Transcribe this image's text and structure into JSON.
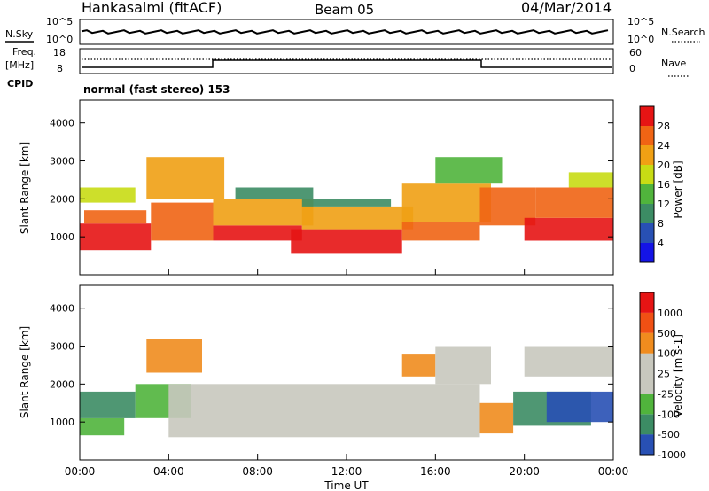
{
  "header": {
    "station": "Hankasalmi (fitACF)",
    "beam": "Beam 05",
    "date": "04/Mar/2014"
  },
  "noise_panel": {
    "left_label": "N.Sky",
    "right_label": "N.Search",
    "ticks_left": [
      "10^5",
      "10^0"
    ],
    "ticks_right": [
      "10^5",
      "10^0"
    ]
  },
  "freq_panel": {
    "left_label_1": "Freq.",
    "left_label_2": "[MHz]",
    "ticks_left": [
      "18",
      "8"
    ],
    "ticks_right": [
      "60",
      "0"
    ],
    "right_label": "Nave",
    "cpid_label": "CPID",
    "mode_text": "normal (fast stereo) 153"
  },
  "x_axis": {
    "label": "Time UT",
    "ticks": [
      "00:00",
      "04:00",
      "08:00",
      "12:00",
      "16:00",
      "20:00",
      "00:00"
    ]
  },
  "colors": {
    "power_scale": [
      "#1414e6",
      "#2850b4",
      "#3c8c64",
      "#50b43c",
      "#c8dc14",
      "#f0a014",
      "#f06414",
      "#e61414"
    ],
    "velocity_scale": [
      "#e61414",
      "#f05014",
      "#f08c1e",
      "#c8c8be",
      "#c8c8be",
      "#50b43c",
      "#3c8c64",
      "#2850b4"
    ]
  },
  "chart_data": [
    {
      "type": "heatmap",
      "title": "Power",
      "xlabel": "Time UT",
      "ylabel": "Slant Range [km]",
      "xlim": [
        0,
        24
      ],
      "ylim": [
        0,
        4600
      ],
      "yticks": [
        "1000",
        "2000",
        "3000",
        "4000"
      ],
      "colorbar_label": "Power [dB]",
      "colorbar_ticks": [
        "4",
        "8",
        "12",
        "16",
        "20",
        "24",
        "28"
      ],
      "regions": [
        {
          "t0": 0.0,
          "t1": 3.2,
          "r0": 650,
          "r1": 1350,
          "level": 7
        },
        {
          "t0": 0.2,
          "t1": 3.0,
          "r0": 1350,
          "r1": 1700,
          "level": 6
        },
        {
          "t0": 0.0,
          "t1": 2.5,
          "r0": 1900,
          "r1": 2300,
          "level": 4
        },
        {
          "t0": 3.2,
          "t1": 6.0,
          "r0": 900,
          "r1": 1900,
          "level": 6
        },
        {
          "t0": 3.0,
          "t1": 6.5,
          "r0": 2000,
          "r1": 3100,
          "level": 5
        },
        {
          "t0": 6.0,
          "t1": 10.0,
          "r0": 900,
          "r1": 1300,
          "level": 7
        },
        {
          "t0": 6.0,
          "t1": 10.5,
          "r0": 1300,
          "r1": 2000,
          "level": 5
        },
        {
          "t0": 7.0,
          "t1": 10.5,
          "r0": 2000,
          "r1": 2300,
          "level": 2
        },
        {
          "t0": 9.5,
          "t1": 14.5,
          "r0": 550,
          "r1": 1200,
          "level": 7
        },
        {
          "t0": 10.0,
          "t1": 15.0,
          "r0": 1200,
          "r1": 1800,
          "level": 5
        },
        {
          "t0": 10.0,
          "t1": 14.0,
          "r0": 1800,
          "r1": 2000,
          "level": 2
        },
        {
          "t0": 14.5,
          "t1": 18.0,
          "r0": 900,
          "r1": 1400,
          "level": 6
        },
        {
          "t0": 14.5,
          "t1": 18.5,
          "r0": 1400,
          "r1": 2400,
          "level": 5
        },
        {
          "t0": 16.0,
          "t1": 19.0,
          "r0": 2400,
          "r1": 3100,
          "level": 3
        },
        {
          "t0": 18.0,
          "t1": 20.5,
          "r0": 1300,
          "r1": 2300,
          "level": 6
        },
        {
          "t0": 20.0,
          "t1": 24.0,
          "r0": 900,
          "r1": 1500,
          "level": 7
        },
        {
          "t0": 20.5,
          "t1": 24.0,
          "r0": 1500,
          "r1": 2300,
          "level": 6
        },
        {
          "t0": 22.0,
          "t1": 24.0,
          "r0": 2300,
          "r1": 2700,
          "level": 4
        }
      ]
    },
    {
      "type": "heatmap",
      "title": "Velocity",
      "xlabel": "Time UT",
      "ylabel": "Slant Range [km]",
      "xlim": [
        0,
        24
      ],
      "ylim": [
        0,
        4600
      ],
      "yticks": [
        "1000",
        "2000",
        "3000",
        "4000"
      ],
      "colorbar_label": "Velocity [m s-1]",
      "colorbar_ticks": [
        "1000",
        "500",
        "100",
        "25",
        "-25",
        "-100",
        "-500",
        "-1000"
      ],
      "regions": [
        {
          "t0": 0.0,
          "t1": 2.0,
          "r0": 650,
          "r1": 1100,
          "level": 5
        },
        {
          "t0": 0.0,
          "t1": 2.5,
          "r0": 1100,
          "r1": 1800,
          "level": 6
        },
        {
          "t0": 2.5,
          "t1": 5.0,
          "r0": 1100,
          "r1": 2000,
          "level": 5
        },
        {
          "t0": 3.0,
          "t1": 5.5,
          "r0": 2300,
          "r1": 3200,
          "level": 2
        },
        {
          "t0": 4.0,
          "t1": 18.0,
          "r0": 600,
          "r1": 2000,
          "level": 3
        },
        {
          "t0": 14.5,
          "t1": 16.0,
          "r0": 2200,
          "r1": 2800,
          "level": 2
        },
        {
          "t0": 16.0,
          "t1": 18.5,
          "r0": 2000,
          "r1": 3000,
          "level": 3
        },
        {
          "t0": 18.0,
          "t1": 19.5,
          "r0": 700,
          "r1": 1500,
          "level": 2
        },
        {
          "t0": 19.5,
          "t1": 23.0,
          "r0": 900,
          "r1": 1800,
          "level": 6
        },
        {
          "t0": 21.0,
          "t1": 24.0,
          "r0": 1000,
          "r1": 1800,
          "level": 7
        },
        {
          "t0": 20.0,
          "t1": 24.0,
          "r0": 2200,
          "r1": 3000,
          "level": 3
        }
      ]
    }
  ]
}
